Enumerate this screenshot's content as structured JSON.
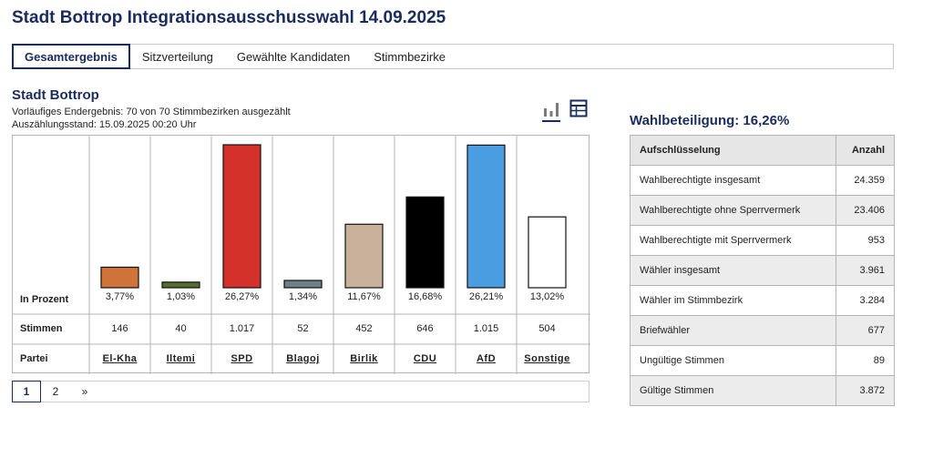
{
  "page_title": "Stadt Bottrop Integrationsausschusswahl 14.09.2025",
  "tabs": [
    {
      "label": "Gesamtergebnis",
      "active": true
    },
    {
      "label": "Sitzverteilung",
      "active": false
    },
    {
      "label": "Gewählte Kandidaten",
      "active": false
    },
    {
      "label": "Stimmbezirke",
      "active": false
    }
  ],
  "section": {
    "title": "Stadt Bottrop",
    "status": "Vorläufiges Endergebnis: 70 von 70 Stimmbezirken ausgezählt",
    "timestamp": "Auszählungsstand: 15.09.2025 00:20 Uhr"
  },
  "view_toggle": [
    {
      "icon": "bar-chart-icon",
      "active": true
    },
    {
      "icon": "table-icon",
      "active": false
    }
  ],
  "chart_data": {
    "type": "bar",
    "categories": [
      "El-Kha",
      "Iltemi",
      "SPD",
      "Blagoj",
      "Birlik",
      "CDU",
      "AfD",
      "Sonstige"
    ],
    "values": [
      3.77,
      1.03,
      26.27,
      1.34,
      11.67,
      16.68,
      26.21,
      13.02
    ],
    "value_labels": [
      "3,77%",
      "1,03%",
      "26,27%",
      "1,34%",
      "11,67%",
      "16,68%",
      "26,21%",
      "13,02%"
    ],
    "votes": [
      "146",
      "40",
      "1.017",
      "52",
      "452",
      "646",
      "1.015",
      "504"
    ],
    "colors": [
      "#d0733a",
      "#556b2f",
      "#d4302a",
      "#6f7f88",
      "#c8b29c",
      "#000000",
      "#4a9de0",
      "#ffffff"
    ],
    "row_labels": {
      "percent": "In Prozent",
      "votes": "Stimmen",
      "party": "Partei"
    },
    "ylim": [
      0,
      26.27
    ]
  },
  "pagination": {
    "pages": [
      "1",
      "2"
    ],
    "next": "»",
    "current": "1"
  },
  "turnout": {
    "title": "Wahlbeteiligung: 16,26%",
    "headers": {
      "label": "Aufschlüsselung",
      "value": "Anzahl"
    },
    "rows": [
      {
        "label": "Wahlberechtigte insgesamt",
        "value": "24.359"
      },
      {
        "label": "Wahlberechtigte ohne Sperrvermerk",
        "value": "23.406"
      },
      {
        "label": "Wahlberechtigte mit Sperrvermerk",
        "value": "953"
      },
      {
        "label": "Wähler insgesamt",
        "value": "3.961"
      },
      {
        "label": "Wähler im Stimmbezirk",
        "value": "3.284"
      },
      {
        "label": "Briefwähler",
        "value": "677"
      },
      {
        "label": "Ungültige Stimmen",
        "value": "89"
      },
      {
        "label": "Gültige Stimmen",
        "value": "3.872"
      }
    ]
  }
}
